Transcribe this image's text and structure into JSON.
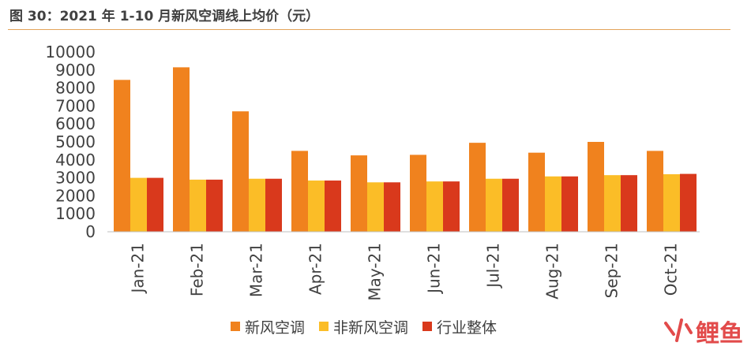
{
  "title": "图 30：2021 年 1-10 月新风空调线上均价（元）",
  "chart_data": {
    "type": "bar",
    "categories": [
      "Jan-21",
      "Feb-21",
      "Mar-21",
      "Apr-21",
      "May-21",
      "Jun-21",
      "Jul-21",
      "Aug-21",
      "Sep-21",
      "Oct-21"
    ],
    "series": [
      {
        "name": "新风空调",
        "color": "#f0821e",
        "values": [
          8450,
          9150,
          6700,
          4500,
          4250,
          4280,
          4950,
          4400,
          5000,
          4500
        ]
      },
      {
        "name": "非新风空调",
        "color": "#fbbd27",
        "values": [
          3000,
          2900,
          2950,
          2850,
          2750,
          2800,
          2950,
          3080,
          3150,
          3200
        ]
      },
      {
        "name": "行业整体",
        "color": "#d9391c",
        "values": [
          3000,
          2900,
          2950,
          2850,
          2750,
          2800,
          2950,
          3080,
          3150,
          3220
        ]
      }
    ],
    "ylim": [
      0,
      10000
    ],
    "yticks": [
      "0",
      "1000",
      "2000",
      "3000",
      "4000",
      "5000",
      "6000",
      "7000",
      "8000",
      "9000",
      "10000"
    ],
    "legend_position": "bottom"
  },
  "watermark": {
    "mark_color": "#e24b4b",
    "text": "鲤鱼"
  }
}
